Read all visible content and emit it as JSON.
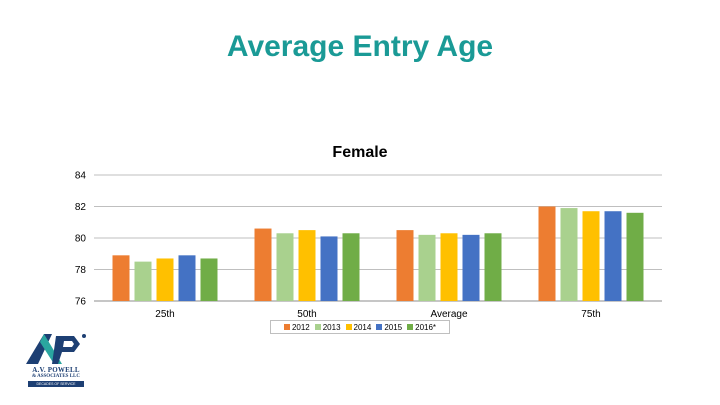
{
  "slide": {
    "title": "Average Entry Age"
  },
  "logo": {
    "name": "A.V. POWELL",
    "sub": "& ASSOCIATES LLC",
    "tagline": "DECADES OF SERVICE"
  },
  "chart_data": {
    "type": "bar",
    "title": "Female",
    "categories": [
      "25th",
      "50th",
      "Average",
      "75th"
    ],
    "ylim": [
      76,
      84
    ],
    "yticks": [
      76,
      78,
      80,
      82,
      84
    ],
    "grid": true,
    "legend_position": "bottom",
    "series": [
      {
        "name": "2012",
        "color": "#ed7d31",
        "values": [
          78.9,
          80.6,
          80.5,
          82.0
        ]
      },
      {
        "name": "2013",
        "color": "#a9d18e",
        "values": [
          78.5,
          80.3,
          80.2,
          81.9
        ]
      },
      {
        "name": "2014",
        "color": "#ffc000",
        "values": [
          78.7,
          80.5,
          80.3,
          81.7
        ]
      },
      {
        "name": "2015",
        "color": "#4472c4",
        "values": [
          78.9,
          80.1,
          80.2,
          81.7
        ]
      },
      {
        "name": "2016*",
        "color": "#70ad47",
        "values": [
          78.7,
          80.3,
          80.3,
          81.6
        ]
      }
    ]
  }
}
